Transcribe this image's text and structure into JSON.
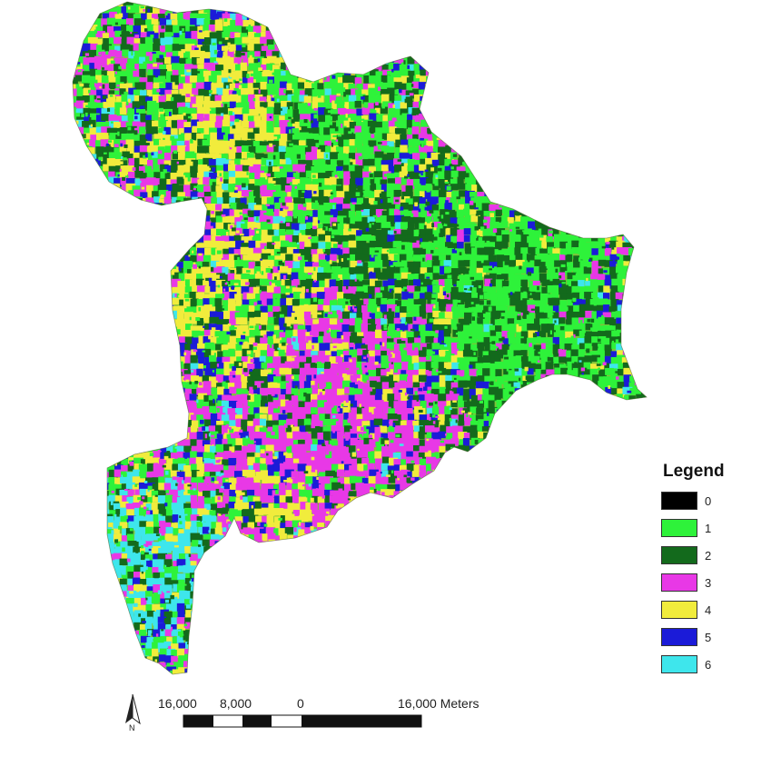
{
  "legend": {
    "title": "Legend",
    "items": [
      {
        "label": "0",
        "color": "#000000"
      },
      {
        "label": "1",
        "color": "#2ef23a"
      },
      {
        "label": "2",
        "color": "#136a1c"
      },
      {
        "label": "3",
        "color": "#e838e6"
      },
      {
        "label": "4",
        "color": "#f1ec3c"
      },
      {
        "label": "5",
        "color": "#1b1bd8"
      },
      {
        "label": "6",
        "color": "#3ee6ec"
      }
    ]
  },
  "scale_bar": {
    "labels": [
      "16,000",
      "8,000",
      "0",
      "16,000 Meters"
    ]
  },
  "north_arrow": {
    "label": "N",
    "icon": "north-arrow-icon"
  }
}
